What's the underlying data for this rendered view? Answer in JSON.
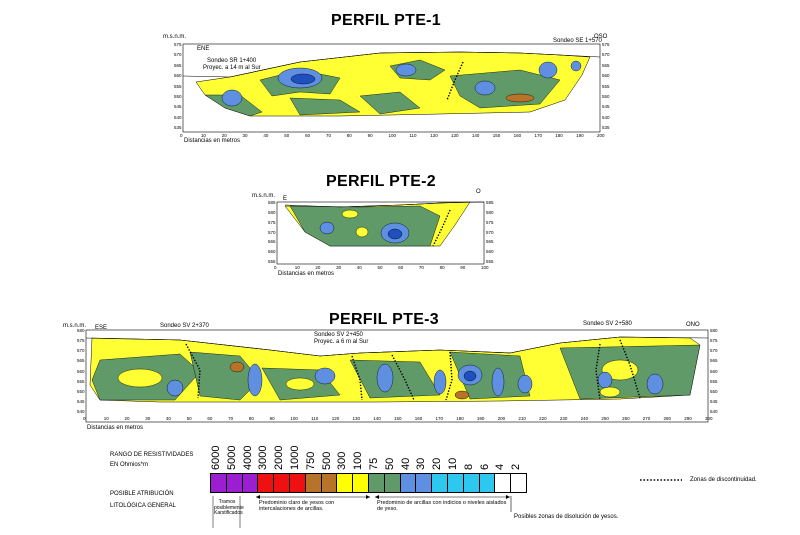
{
  "profiles": [
    {
      "title": "PERFIL PTE-1",
      "msnm": "m.s.n.m.",
      "left_dir": "ENE",
      "right_dir": "OSO",
      "sondeos": [
        "Sondeo SR 1+400",
        "Proyec. a 14 m al Sur",
        "Sondeo SE 1+570"
      ],
      "x_ticks": [
        "0",
        "10",
        "20",
        "30",
        "40",
        "50",
        "60",
        "70",
        "80",
        "90",
        "100",
        "110",
        "120",
        "130",
        "140",
        "150",
        "160",
        "170",
        "180",
        "190",
        "200"
      ],
      "y_ticks": [
        "575",
        "570",
        "565",
        "560",
        "555",
        "550",
        "545",
        "540",
        "535"
      ],
      "x_label": "Distancias en metros"
    },
    {
      "title": "PERFIL PTE-2",
      "msnm": "m.s.n.m.",
      "left_dir": "E",
      "right_dir": "O",
      "x_ticks": [
        "0",
        "10",
        "20",
        "30",
        "40",
        "50",
        "60",
        "70",
        "80",
        "90",
        "100"
      ],
      "y_ticks": [
        "585",
        "580",
        "575",
        "570",
        "565",
        "560",
        "555"
      ],
      "x_label": "Distancias en metros"
    },
    {
      "title": "PERFIL PTE-3",
      "msnm": "m.s.n.m.",
      "left_dir": "ESE",
      "right_dir": "ONO",
      "sondeos": [
        "Sondeo SV 2+370",
        "Sondeo SV 2+450",
        "Proyec. a 6 m al Sur",
        "Sondeo SV 2+580"
      ],
      "x_ticks": [
        "0",
        "10",
        "20",
        "30",
        "40",
        "50",
        "60",
        "70",
        "80",
        "90",
        "100",
        "110",
        "120",
        "130",
        "140",
        "150",
        "160",
        "170",
        "180",
        "190",
        "200",
        "210",
        "220",
        "230",
        "240",
        "250",
        "260",
        "270",
        "280",
        "290",
        "300"
      ],
      "y_ticks": [
        "580",
        "575",
        "570",
        "565",
        "560",
        "555",
        "550",
        "545",
        "540"
      ],
      "x_label": "Distancias en metros"
    }
  ],
  "legend": {
    "range_title": "RANGO DE RESISTIVIDADES",
    "range_unit": "EN Ohmios*m",
    "values": [
      "6000",
      "5000",
      "4000",
      "3000",
      "2000",
      "1000",
      "750",
      "500",
      "300",
      "100",
      "75",
      "50",
      "40",
      "30",
      "20",
      "10",
      "8",
      "6",
      "4",
      "2"
    ],
    "colors": [
      "#9b1fd0",
      "#9b1fd0",
      "#9b1fd0",
      "#ee1111",
      "#ee1111",
      "#ee1111",
      "#b8732a",
      "#b8732a",
      "#ffff00",
      "#ffff00",
      "#5f9a68",
      "#5f9a68",
      "#5f8fe0",
      "#5f8fe0",
      "#2ec8ee",
      "#2ec8ee",
      "#2ec8ee",
      "#2ec8ee",
      "#ffffff",
      "#ffffff"
    ],
    "attr_title": "POSIBLE ATRIBUCIÓN",
    "attr_subtitle": "LITOLÓGICA GENERAL",
    "attr_1": "Tramos posiblemente Karstificados",
    "attr_2": "Predominio claro de yesos con intercalaciones de arcillas.",
    "attr_3": "Predominio de arcillas con indicios o niveles aislados de yeso.",
    "attr_4": "Posibles zonas de disolución de yesos.",
    "discontinuity": "Zonas de discontinuidad."
  }
}
